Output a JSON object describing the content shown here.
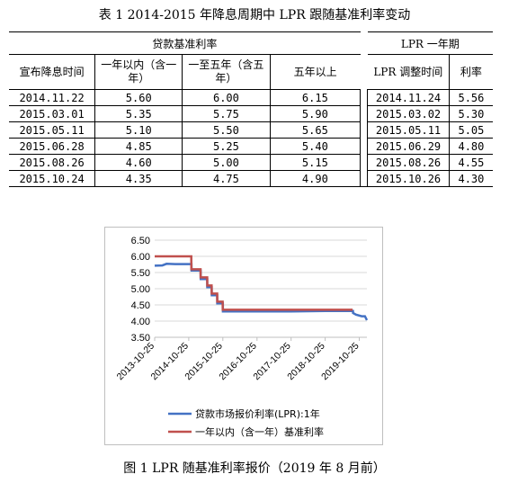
{
  "table": {
    "title": "表 1   2014-2015 年降息周期中 LPR 跟随基准利率变动",
    "group_headers": [
      "贷款基准利率",
      "LPR 一年期"
    ],
    "columns": [
      "宣布降息时间",
      "一年以内（含一年）",
      "一至五年（含五年）",
      "五年以上",
      "LPR 调整时间",
      "利率"
    ],
    "rows": [
      [
        "2014.11.22",
        "5.60",
        "6.00",
        "6.15",
        "2014.11.24",
        "5.56"
      ],
      [
        "2015.03.01",
        "5.35",
        "5.75",
        "5.90",
        "2015.03.02",
        "5.30"
      ],
      [
        "2015.05.11",
        "5.10",
        "5.50",
        "5.65",
        "2015.05.11",
        "5.05"
      ],
      [
        "2015.06.28",
        "4.85",
        "5.25",
        "5.40",
        "2015.06.29",
        "4.80"
      ],
      [
        "2015.08.26",
        "4.60",
        "5.00",
        "5.15",
        "2015.08.26",
        "4.55"
      ],
      [
        "2015.10.24",
        "4.35",
        "4.75",
        "4.90",
        "2015.10.26",
        "4.30"
      ]
    ]
  },
  "chart_data": {
    "type": "line",
    "title": "",
    "xlabel": "",
    "ylabel": "",
    "ylim": [
      3.5,
      6.5
    ],
    "y_ticks": [
      "3.50",
      "4.00",
      "4.50",
      "5.00",
      "5.50",
      "6.00",
      "6.50"
    ],
    "x_ticks": [
      "2013-10-25",
      "2014-10-25",
      "2015-10-25",
      "2016-10-25",
      "2017-10-25",
      "2018-10-25",
      "2019-10-25"
    ],
    "xlim": [
      "2013-10-25",
      "2020-01-15"
    ],
    "legend_position": "bottom",
    "series": [
      {
        "name": "贷款市场报价利率(LPR):1年",
        "color": "#4472c4",
        "points": [
          [
            "2013-10-25",
            5.71
          ],
          [
            "2014-01-15",
            5.72
          ],
          [
            "2014-03-01",
            5.77
          ],
          [
            "2014-06-01",
            5.76
          ],
          [
            "2014-09-01",
            5.76
          ],
          [
            "2014-11-23",
            5.76
          ],
          [
            "2014-11-24",
            5.56
          ],
          [
            "2015-03-01",
            5.56
          ],
          [
            "2015-03-02",
            5.3
          ],
          [
            "2015-05-10",
            5.3
          ],
          [
            "2015-05-11",
            5.05
          ],
          [
            "2015-06-28",
            5.05
          ],
          [
            "2015-06-29",
            4.8
          ],
          [
            "2015-08-25",
            4.8
          ],
          [
            "2015-08-26",
            4.55
          ],
          [
            "2015-10-25",
            4.55
          ],
          [
            "2015-10-26",
            4.3
          ],
          [
            "2016-10-25",
            4.3
          ],
          [
            "2017-10-25",
            4.3
          ],
          [
            "2018-10-25",
            4.31
          ],
          [
            "2019-08-19",
            4.31
          ],
          [
            "2019-08-20",
            4.25
          ],
          [
            "2019-09-20",
            4.2
          ],
          [
            "2019-11-20",
            4.15
          ],
          [
            "2019-12-25",
            4.15
          ],
          [
            "2020-01-15",
            4.03
          ]
        ]
      },
      {
        "name": "一年以内（含一年）基准利率",
        "color": "#c0504d",
        "points": [
          [
            "2013-10-25",
            6.0
          ],
          [
            "2014-11-21",
            6.0
          ],
          [
            "2014-11-22",
            5.6
          ],
          [
            "2015-02-28",
            5.6
          ],
          [
            "2015-03-01",
            5.35
          ],
          [
            "2015-05-10",
            5.35
          ],
          [
            "2015-05-11",
            5.1
          ],
          [
            "2015-06-27",
            5.1
          ],
          [
            "2015-06-28",
            4.85
          ],
          [
            "2015-08-25",
            4.85
          ],
          [
            "2015-08-26",
            4.6
          ],
          [
            "2015-10-23",
            4.6
          ],
          [
            "2015-10-24",
            4.35
          ],
          [
            "2019-08-15",
            4.35
          ]
        ]
      }
    ]
  },
  "figure_caption": "图 1   LPR 随基准利率报价（2019 年 8 月前）"
}
